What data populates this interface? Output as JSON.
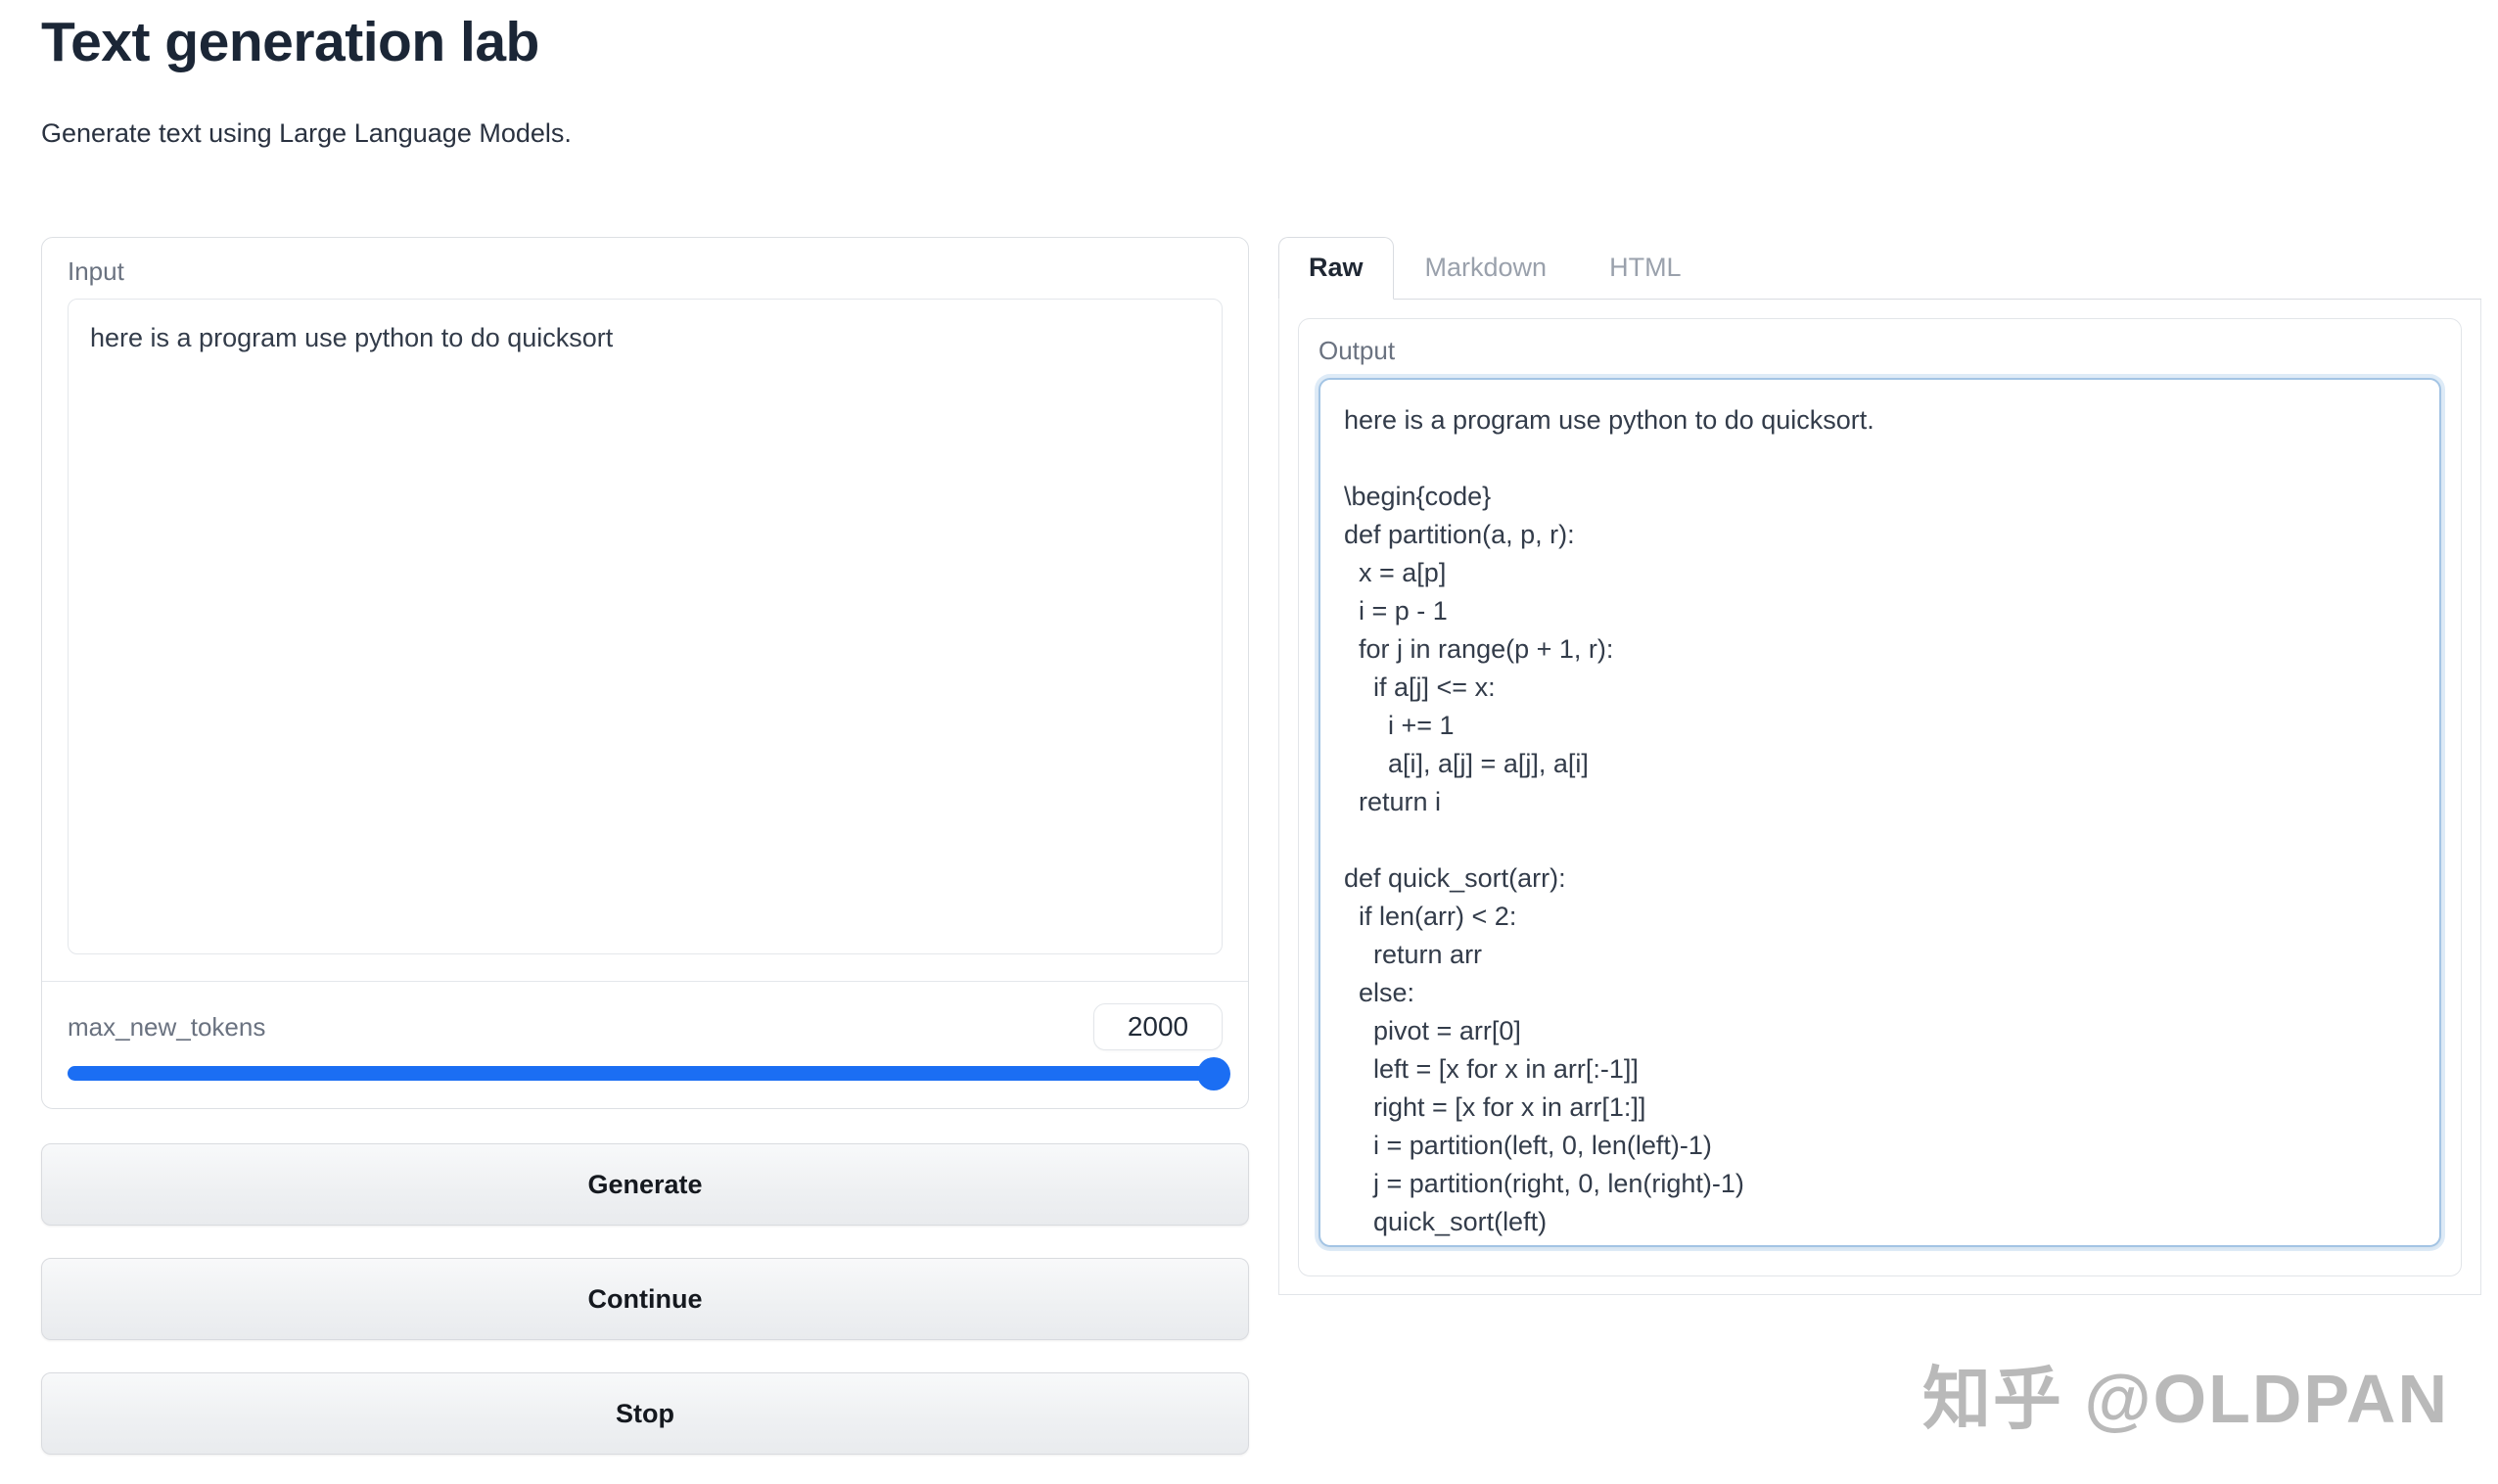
{
  "header": {
    "title": "Text generation lab",
    "subtitle": "Generate text using Large Language Models."
  },
  "input_panel": {
    "label": "Input",
    "value": "here is a program use python to do quicksort"
  },
  "slider": {
    "label": "max_new_tokens",
    "value": "2000"
  },
  "buttons": {
    "generate": "Generate",
    "continue": "Continue",
    "stop": "Stop"
  },
  "tabs": [
    {
      "label": "Raw",
      "active": true
    },
    {
      "label": "Markdown",
      "active": false
    },
    {
      "label": "HTML",
      "active": false
    }
  ],
  "output_panel": {
    "label": "Output",
    "value": "here is a program use python to do quicksort.\n\n\\begin{code}\ndef partition(a, p, r):\n  x = a[p]\n  i = p - 1\n  for j in range(p + 1, r):\n    if a[j] <= x:\n      i += 1\n      a[i], a[j] = a[j], a[i]\n  return i\n\ndef quick_sort(arr):\n  if len(arr) < 2:\n    return arr\n  else:\n    pivot = arr[0]\n    left = [x for x in arr[:-1]]\n    right = [x for x in arr[1:]]\n    i = partition(left, 0, len(left)-1)\n    j = partition(right, 0, len(right)-1)\n    quick_sort(left)"
  },
  "watermark": "知乎 @OLDPAN",
  "colors": {
    "accent_blue": "#1b6ef3",
    "output_border_blue": "#a3c4e4",
    "title_text": "#1b2636",
    "muted_label": "#6a7280",
    "inactive_tab": "#9aa1ac",
    "watermark_gray": "#b9b9b9"
  }
}
